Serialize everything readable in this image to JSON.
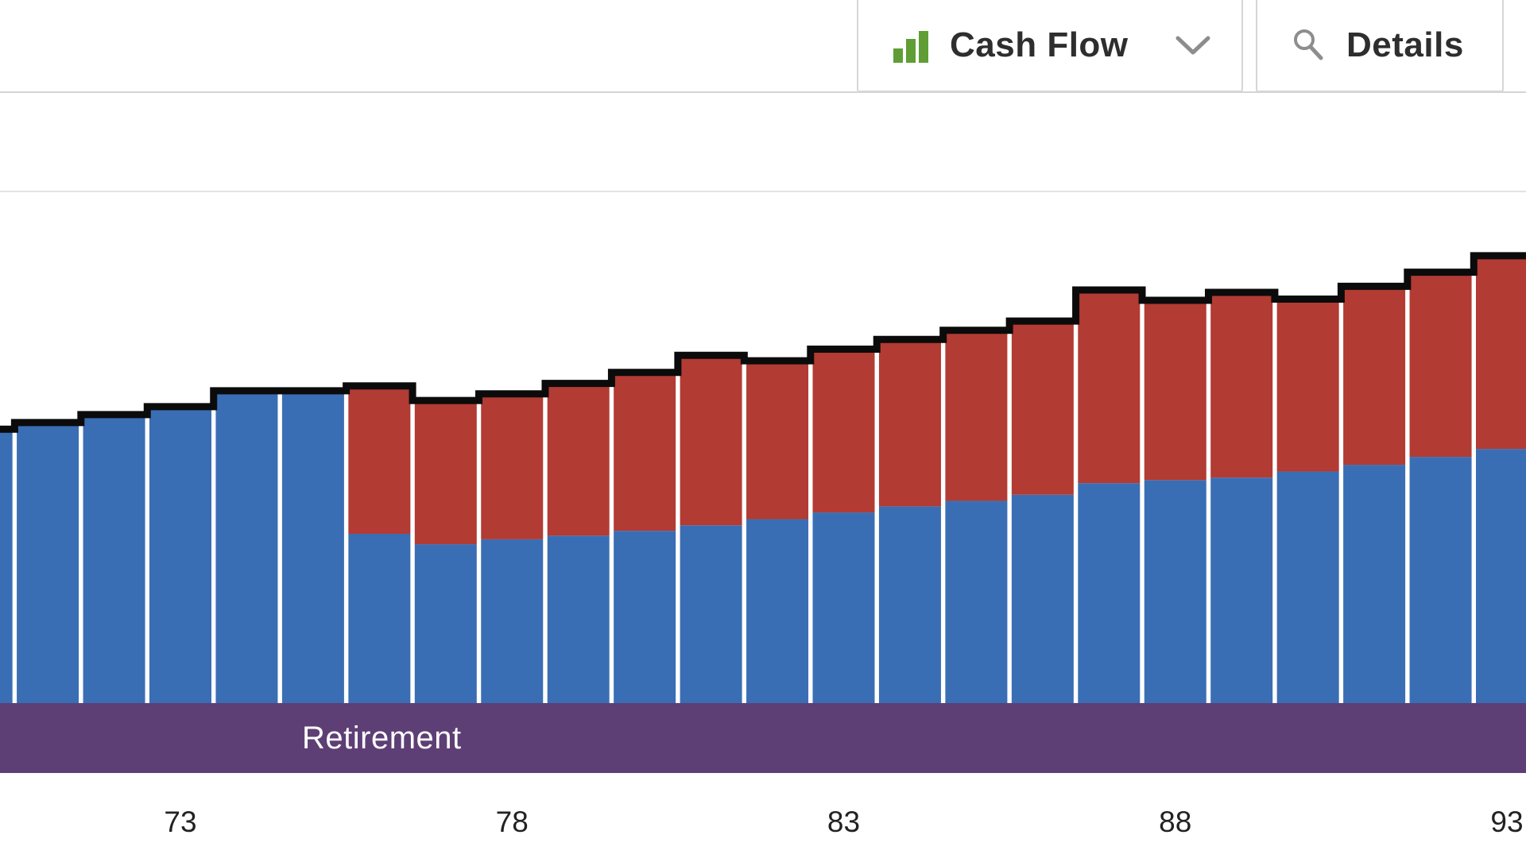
{
  "toolbar": {
    "cash_flow_button": {
      "label": "Cash Flow",
      "icon": "bar-chart-icon",
      "chevron_icon": "chevron-down-icon"
    },
    "details_button": {
      "label": "Details",
      "icon": "magnifier-icon"
    }
  },
  "retirement_band": {
    "label": "Retirement"
  },
  "x_axis": {
    "tick_labels": [
      "73",
      "78",
      "83",
      "88",
      "93"
    ]
  },
  "colors": {
    "blue_bar": "#3a6eb4",
    "red_bar": "#b23b33",
    "total_line": "#0b0b0b",
    "retirement_band": "#5d3f75",
    "icon_green": "#5f9e34",
    "icon_gray": "#8d8d8d",
    "grid_line_top": "#d4d4d4",
    "grid_line": "#e3e3e3",
    "axis_label": "#222222",
    "button_text": "#2e2e2e",
    "button_border": "#d6d6d6"
  },
  "chart_data": {
    "type": "bar",
    "stacked": true,
    "x": [
      70,
      71,
      72,
      73,
      74,
      75,
      76,
      77,
      78,
      79,
      80,
      81,
      82,
      83,
      84,
      85,
      86,
      87,
      88,
      89,
      90,
      91,
      92,
      93
    ],
    "xticks": [
      73,
      78,
      83,
      88,
      93
    ],
    "value_scale": "relative height, percent of visible plot area (y-axis value labels are cropped out of view)",
    "grid": "horizontal lines visible near top of plot",
    "legend": "none visible",
    "series": [
      {
        "name": "blue",
        "color": "#3a6eb4",
        "values": [
          44.5,
          45.6,
          46.9,
          48.2,
          50.8,
          50.8,
          27.7,
          26.0,
          26.8,
          27.4,
          28.2,
          29.1,
          30.1,
          31.2,
          32.2,
          33.1,
          34.1,
          36.0,
          36.5,
          36.9,
          37.9,
          39.0,
          40.3,
          41.6
        ]
      },
      {
        "name": "red",
        "color": "#b23b33",
        "values": [
          0,
          0,
          0,
          0,
          0,
          0,
          23.9,
          23.2,
          23.5,
          24.6,
          25.6,
          27.5,
          25.6,
          26.4,
          27.0,
          27.6,
          28.1,
          31.3,
          29.1,
          30.0,
          27.9,
          28.9,
          29.9,
          31.3
        ]
      }
    ],
    "total_line": {
      "name": "total-step-line",
      "color": "#0b0b0b",
      "values": [
        44.5,
        45.6,
        46.9,
        48.2,
        50.8,
        50.8,
        51.6,
        49.2,
        50.3,
        52.0,
        53.8,
        56.6,
        55.7,
        57.6,
        59.2,
        60.7,
        62.2,
        67.3,
        65.6,
        66.9,
        65.8,
        67.9,
        70.2,
        72.9
      ]
    },
    "annotations": [
      {
        "label": "Retirement",
        "type": "period-band",
        "position": "bottom"
      }
    ]
  }
}
